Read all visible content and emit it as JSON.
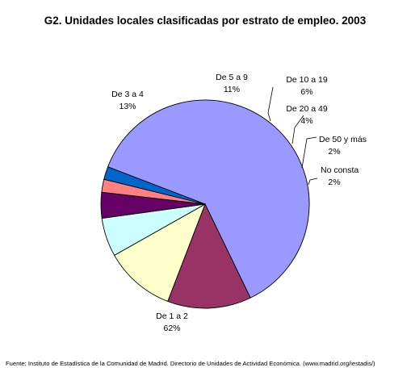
{
  "chart_data": {
    "type": "pie",
    "title": "G2. Unidades locales clasificadas por estrato de empleo. 2003",
    "slices": [
      {
        "name": "De 1 a 2",
        "value": 62,
        "pct_label": "62%",
        "color": "#9999FF"
      },
      {
        "name": "De 3 a 4",
        "value": 13,
        "pct_label": "13%",
        "color": "#993366"
      },
      {
        "name": "De 5 a 9",
        "value": 11,
        "pct_label": "11%",
        "color": "#FFFFCC"
      },
      {
        "name": "De 10 a 19",
        "value": 6,
        "pct_label": "6%",
        "color": "#CCFFFF"
      },
      {
        "name": "De 20 a 49",
        "value": 4,
        "pct_label": "4%",
        "color": "#660066"
      },
      {
        "name": "De 50 y más",
        "value": 2,
        "pct_label": "2%",
        "color": "#FF8080"
      },
      {
        "name": "No consta",
        "value": 2,
        "pct_label": "2%",
        "color": "#0066CC"
      }
    ],
    "source": "Fuente: Instituto de Estadística de la Comunidad de Madrid. Directorio de Unidades de Actividad Económica. (www.madrid.org/iestadis/)"
  }
}
